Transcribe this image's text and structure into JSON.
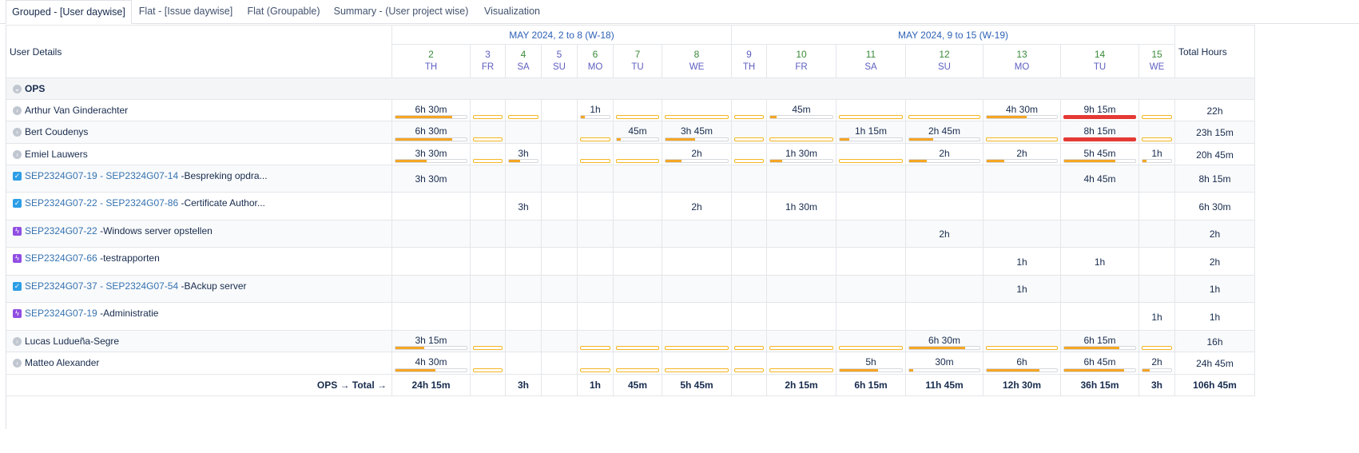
{
  "tabs": [
    {
      "label": "Grouped - [User daywise]",
      "active": true
    },
    {
      "label": "Flat - [Issue daywise]",
      "active": false
    },
    {
      "label": "Flat (Groupable)",
      "active": false
    },
    {
      "label": "Summary - (User project wise)",
      "active": false
    },
    {
      "label": "Visualization",
      "active": false
    }
  ],
  "header": {
    "user_details": "User Details",
    "total_hours": "Total Hours",
    "weeks": [
      "MAY 2024, 2 to 8 (W-18)",
      "MAY 2024, 9 to 15 (W-19)"
    ],
    "days": [
      {
        "num": "2",
        "name": "TH"
      },
      {
        "num": "3",
        "name": "FR"
      },
      {
        "num": "4",
        "name": "SA"
      },
      {
        "num": "5",
        "name": "SU"
      },
      {
        "num": "6",
        "name": "MO"
      },
      {
        "num": "7",
        "name": "TU"
      },
      {
        "num": "8",
        "name": "WE"
      },
      {
        "num": "9",
        "name": "TH"
      },
      {
        "num": "10",
        "name": "FR"
      },
      {
        "num": "11",
        "name": "SA"
      },
      {
        "num": "12",
        "name": "SU"
      },
      {
        "num": "13",
        "name": "MO"
      },
      {
        "num": "14",
        "name": "TU"
      },
      {
        "num": "15",
        "name": "WE"
      }
    ]
  },
  "group": {
    "label": "OPS"
  },
  "rows": [
    {
      "kind": "user",
      "name": "Arthur Van Ginderachter",
      "values": [
        "6h 30m",
        "",
        "",
        "",
        "1h",
        "",
        "",
        "",
        "45m",
        "",
        "",
        "4h 30m",
        "9h 15m",
        ""
      ],
      "fill": [
        0.8,
        0,
        0,
        0,
        0.13,
        0,
        0,
        0,
        0.1,
        0,
        0,
        0.57,
        1.0,
        0
      ],
      "over": [
        false,
        false,
        false,
        false,
        false,
        false,
        false,
        false,
        false,
        false,
        false,
        false,
        true,
        false
      ],
      "empty": [
        false,
        false,
        false,
        true,
        false,
        false,
        false,
        false,
        false,
        false,
        false,
        false,
        false,
        false
      ],
      "total": "22h"
    },
    {
      "kind": "user",
      "name": "Bert Coudenys",
      "values": [
        "6h 30m",
        "",
        "",
        "",
        "",
        "45m",
        "3h 45m",
        "",
        "",
        "1h 15m",
        "2h 45m",
        "",
        "8h 15m",
        ""
      ],
      "fill": [
        0.8,
        0,
        0,
        0,
        0,
        0.1,
        0.47,
        0,
        0,
        0.16,
        0.34,
        0,
        1.0,
        0
      ],
      "over": [
        false,
        false,
        false,
        false,
        false,
        false,
        false,
        false,
        false,
        false,
        false,
        false,
        true,
        false
      ],
      "empty": [
        false,
        false,
        true,
        true,
        false,
        false,
        false,
        false,
        false,
        false,
        false,
        false,
        false,
        false
      ],
      "total": "23h 15m"
    },
    {
      "kind": "user",
      "name": "Emiel Lauwers",
      "values": [
        "3h 30m",
        "",
        "3h",
        "",
        "",
        "",
        "2h",
        "",
        "1h 30m",
        "",
        "2h",
        "2h",
        "5h 45m",
        "1h"
      ],
      "fill": [
        0.44,
        0,
        0.38,
        0,
        0,
        0,
        0.25,
        0,
        0.19,
        0,
        0.25,
        0.25,
        0.72,
        0.13
      ],
      "over": [
        false,
        false,
        false,
        false,
        false,
        false,
        false,
        false,
        false,
        false,
        false,
        false,
        false,
        false
      ],
      "empty": [
        false,
        false,
        false,
        true,
        false,
        false,
        false,
        false,
        false,
        false,
        false,
        false,
        false,
        false
      ],
      "total": "20h 45m"
    },
    {
      "kind": "issue",
      "icon": "task",
      "key": "SEP2324G07-19 - SEP2324G07-14",
      "title": " -Bespreking opdra...",
      "values": [
        "3h 30m",
        "",
        "",
        "",
        "",
        "",
        "",
        "",
        "",
        "",
        "",
        "",
        "4h 45m",
        ""
      ],
      "total": "8h 15m"
    },
    {
      "kind": "issue",
      "icon": "task",
      "key": "SEP2324G07-22 - SEP2324G07-86",
      "title": " -Certificate Author...",
      "values": [
        "",
        "",
        "3h",
        "",
        "",
        "",
        "2h",
        "",
        "1h 30m",
        "",
        "",
        "",
        "",
        ""
      ],
      "total": "6h 30m"
    },
    {
      "kind": "issue",
      "icon": "sub",
      "key": "SEP2324G07-22",
      "title": " -Windows server opstellen",
      "values": [
        "",
        "",
        "",
        "",
        "",
        "",
        "",
        "",
        "",
        "",
        "2h",
        "",
        "",
        ""
      ],
      "total": "2h"
    },
    {
      "kind": "issue",
      "icon": "sub",
      "key": "SEP2324G07-66",
      "title": " -testrapporten",
      "values": [
        "",
        "",
        "",
        "",
        "",
        "",
        "",
        "",
        "",
        "",
        "",
        "1h",
        "1h",
        ""
      ],
      "total": "2h"
    },
    {
      "kind": "issue",
      "icon": "task",
      "key": "SEP2324G07-37 - SEP2324G07-54",
      "title": " -BAckup server",
      "values": [
        "",
        "",
        "",
        "",
        "",
        "",
        "",
        "",
        "",
        "",
        "",
        "1h",
        "",
        ""
      ],
      "total": "1h"
    },
    {
      "kind": "issue",
      "icon": "sub",
      "key": "SEP2324G07-19",
      "title": " -Administratie",
      "values": [
        "",
        "",
        "",
        "",
        "",
        "",
        "",
        "",
        "",
        "",
        "",
        "",
        "",
        "1h"
      ],
      "total": "1h"
    },
    {
      "kind": "user",
      "name": "Lucas Ludueña-Segre",
      "values": [
        "3h 15m",
        "",
        "",
        "",
        "",
        "",
        "",
        "",
        "",
        "",
        "6h 30m",
        "",
        "6h 15m",
        ""
      ],
      "fill": [
        0.4,
        0,
        0,
        0,
        0,
        0,
        0,
        0,
        0,
        0,
        0.8,
        0,
        0.78,
        0
      ],
      "over": [
        false,
        false,
        false,
        false,
        false,
        false,
        false,
        false,
        false,
        false,
        false,
        false,
        false,
        false
      ],
      "empty": [
        false,
        false,
        true,
        true,
        false,
        false,
        false,
        false,
        false,
        false,
        false,
        false,
        false,
        false
      ],
      "total": "16h"
    },
    {
      "kind": "user",
      "name": "Matteo Alexander",
      "values": [
        "4h 30m",
        "",
        "",
        "",
        "",
        "",
        "",
        "",
        "",
        "5h",
        "30m",
        "6h",
        "6h 45m",
        "2h"
      ],
      "fill": [
        0.56,
        0,
        0,
        0,
        0,
        0,
        0,
        0,
        0,
        0.62,
        0.06,
        0.75,
        0.84,
        0.25
      ],
      "over": [
        false,
        false,
        false,
        false,
        false,
        false,
        false,
        false,
        false,
        false,
        false,
        false,
        false,
        false
      ],
      "empty": [
        false,
        false,
        true,
        true,
        false,
        false,
        false,
        false,
        false,
        false,
        false,
        false,
        false,
        false
      ],
      "total": "24h 45m"
    }
  ],
  "footer": {
    "label": "OPS → Total →",
    "values": [
      "24h 15m",
      "",
      "3h",
      "",
      "1h",
      "45m",
      "5h 45m",
      "",
      "2h 15m",
      "6h 15m",
      "11h 45m",
      "12h 30m",
      "36h 15m",
      "3h"
    ],
    "total": "106h 45m"
  },
  "colors": {
    "link": "#3572b0",
    "bar_fill": "#f5a623",
    "bar_over": "#e53935",
    "weekday_green": "#3a8a3a",
    "day_name": "#5e5ec1",
    "week_header": "#2e62b7"
  },
  "icons": {
    "collapse": "chevron-circle-icon",
    "task": "checkbox-task-icon",
    "subtask": "lightning-subtask-icon"
  }
}
